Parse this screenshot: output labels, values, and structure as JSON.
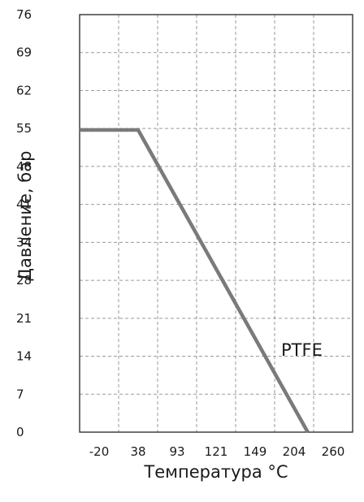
{
  "chart_data": {
    "type": "line",
    "title": "",
    "xlabel": "Температура °C",
    "ylabel": "Давление, бар",
    "x_ticks": [
      "-20",
      "38",
      "93",
      "121",
      "149",
      "204",
      "260"
    ],
    "y_ticks": [
      "0",
      "7",
      "14",
      "21",
      "28",
      "34",
      "41",
      "48",
      "55",
      "62",
      "69",
      "76"
    ],
    "ylim": [
      0,
      76
    ],
    "grid": true,
    "series": [
      {
        "name": "PTFE",
        "color": "#7a7a7a",
        "points": [
          {
            "x": "-29",
            "y": 55
          },
          {
            "x": "38",
            "y": 55
          },
          {
            "x": "~190",
            "y": 0
          }
        ]
      }
    ]
  }
}
